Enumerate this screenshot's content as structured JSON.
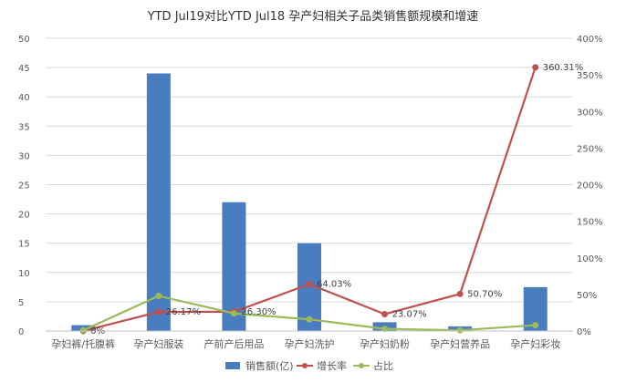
{
  "chart_data": {
    "type": "bar",
    "title": "YTD Jul19对比YTD Jul18 孕产妇相关子品类销售额规模和增速",
    "categories": [
      "孕妇裤/托腹裤",
      "孕产妇服装",
      "产前产后用品",
      "孕产妇洗护",
      "孕产妇奶粉",
      "孕产妇营养品",
      "孕产妇彩妆"
    ],
    "series": [
      {
        "name": "销售额(亿)",
        "kind": "bar",
        "axis": "left",
        "color": "#4a7dbf",
        "values": [
          1.0,
          44.0,
          22.0,
          15.0,
          1.5,
          0.8,
          7.5
        ]
      },
      {
        "name": "增长率",
        "kind": "line",
        "axis": "right",
        "color": "#c0504d",
        "values": [
          0,
          26.17,
          26.3,
          64.03,
          23.07,
          50.7,
          360.31
        ],
        "labels": [
          "0%",
          "26.17%",
          "26.30%",
          "64.03%",
          "23.07%",
          "50.70%",
          "360.31%"
        ]
      },
      {
        "name": "占比",
        "kind": "line",
        "axis": "right",
        "color": "#9bbb59",
        "values": [
          1,
          48,
          24,
          16,
          3,
          1,
          8
        ]
      }
    ],
    "y_left": {
      "min": 0,
      "max": 50,
      "ticks": [
        "0",
        "5",
        "10",
        "15",
        "20",
        "25",
        "30",
        "35",
        "40",
        "45",
        "50"
      ]
    },
    "y_right": {
      "min": 0,
      "max": 400,
      "ticks": [
        "0%",
        "50%",
        "100%",
        "150%",
        "200%",
        "250%",
        "300%",
        "350%",
        "400%"
      ]
    },
    "grid": true,
    "legend_position": "bottom"
  }
}
